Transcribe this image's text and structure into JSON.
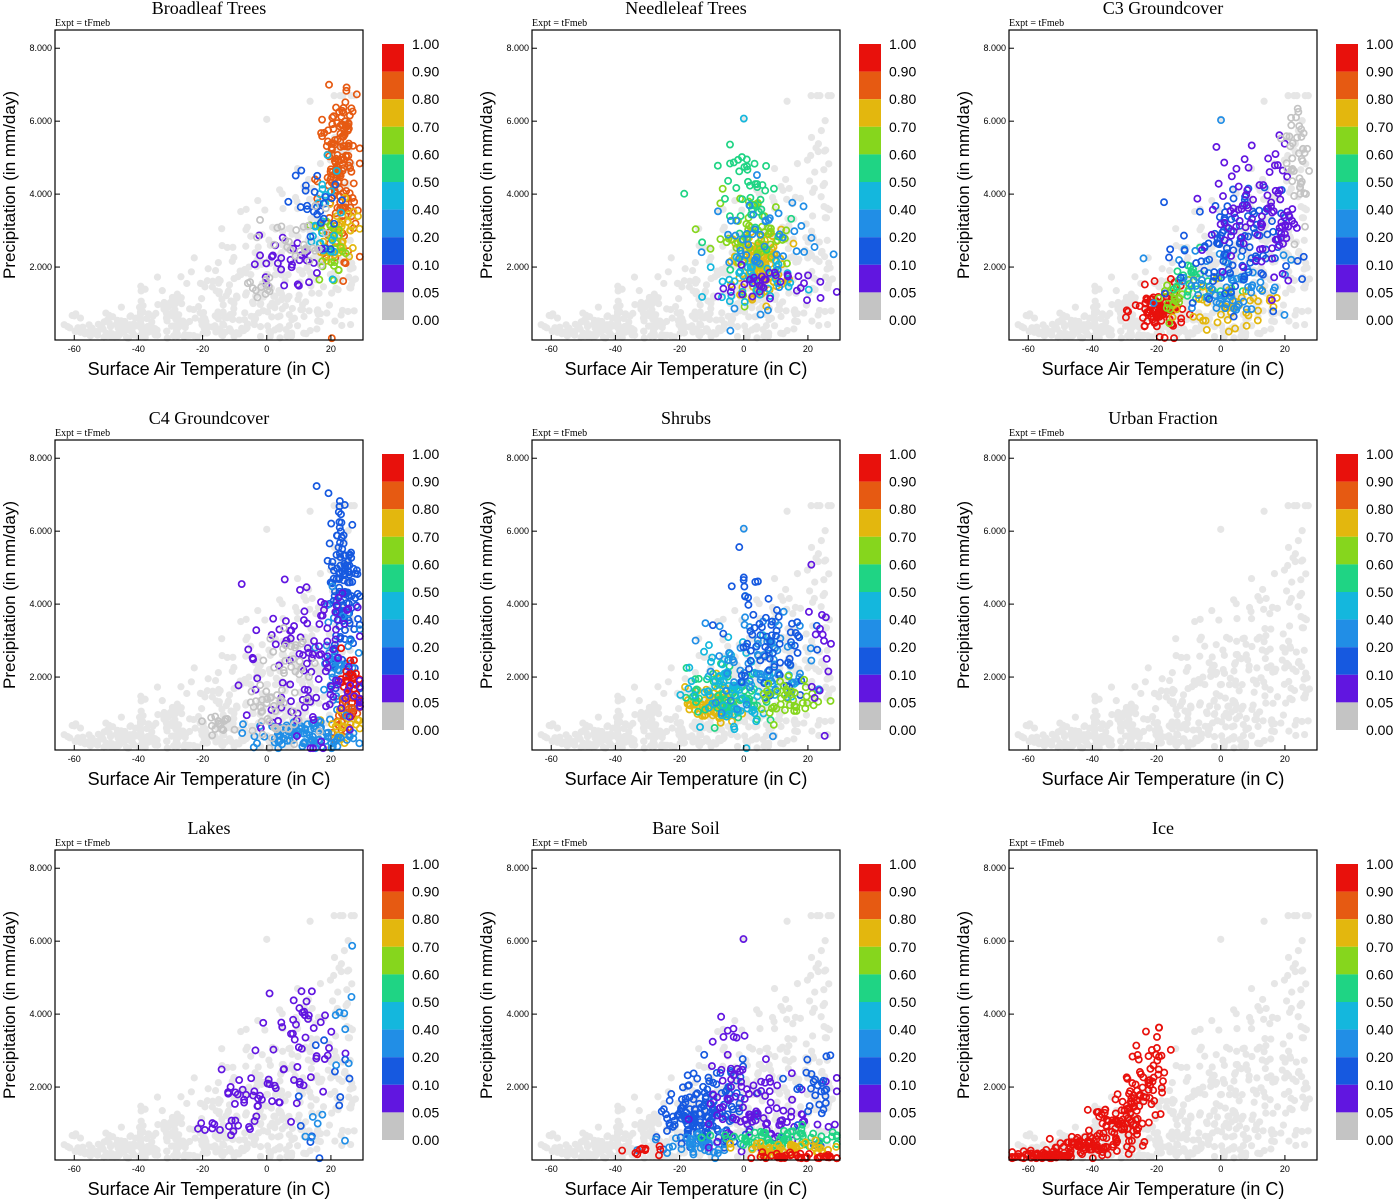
{
  "chart_data": {
    "type": "scatter",
    "layout": "3x3 small multiples",
    "expt_label": "Expt = tFmeb",
    "xlabel": "Surface Air Temperature (in C)",
    "ylabel": "Precipitation (in mm/day)",
    "xlim": [
      -66,
      30
    ],
    "ylim": [
      0,
      8.5
    ],
    "xticks": [
      -60,
      -40,
      -20,
      0,
      20
    ],
    "yticks": [
      2.0,
      4.0,
      6.0,
      8.0
    ],
    "ytick_labels": [
      "2.000",
      "4.000",
      "6.000",
      "8.000"
    ],
    "colorbar": {
      "labels": [
        "1.00",
        "0.90",
        "0.80",
        "0.70",
        "0.60",
        "0.50",
        "0.40",
        "0.20",
        "0.10",
        "0.05",
        "0.00"
      ],
      "colors": [
        "#e8110c",
        "#e65a12",
        "#e3b70e",
        "#86d61d",
        "#1fd484",
        "#14b7dd",
        "#218ee6",
        "#1659e0",
        "#6116e0",
        "#c4c4c4"
      ]
    },
    "background_color": "#e6e6e6",
    "panels": [
      {
        "title": "Broadleaf Trees",
        "clusters": [
          {
            "cx": 22,
            "cy": 4.3,
            "sx": 3,
            "sy": 1.2,
            "n": 130,
            "ci": 1
          },
          {
            "cx": 25,
            "cy": 5.8,
            "sx": 1.2,
            "sy": 0.6,
            "n": 30,
            "ci": 1
          },
          {
            "cx": 23,
            "cy": 3.0,
            "sx": 2.5,
            "sy": 0.5,
            "n": 35,
            "ci": 2
          },
          {
            "cx": 20,
            "cy": 2.6,
            "sx": 2.5,
            "sy": 0.5,
            "n": 25,
            "ci": 3
          },
          {
            "cx": 17,
            "cy": 3.2,
            "sx": 3,
            "sy": 0.8,
            "n": 25,
            "ci": 5
          },
          {
            "cx": 14,
            "cy": 3.6,
            "sx": 4,
            "sy": 0.6,
            "n": 25,
            "ci": 7
          },
          {
            "cx": 6,
            "cy": 2.1,
            "sx": 5,
            "sy": 0.4,
            "n": 30,
            "ci": 8
          },
          {
            "cx": -2,
            "cy": 1.5,
            "sx": 2,
            "sy": 0.15,
            "n": 12,
            "ci": 9
          },
          {
            "cx": 10,
            "cy": 2.6,
            "sx": 6,
            "sy": 0.5,
            "n": 28,
            "ci": 9
          }
        ]
      },
      {
        "title": "Needleleaf Trees",
        "clusters": [
          {
            "cx": 5,
            "cy": 2.1,
            "sx": 4,
            "sy": 0.45,
            "n": 120,
            "ci": 2
          },
          {
            "cx": 3,
            "cy": 2.8,
            "sx": 6,
            "sy": 0.6,
            "n": 60,
            "ci": 3
          },
          {
            "cx": 4,
            "cy": 3.9,
            "sx": 6,
            "sy": 0.7,
            "n": 45,
            "ci": 4
          },
          {
            "cx": 2,
            "cy": 1.7,
            "sx": 7,
            "sy": 0.3,
            "n": 40,
            "ci": 5
          },
          {
            "cx": 6,
            "cy": 2.6,
            "sx": 8,
            "sy": 0.8,
            "n": 50,
            "ci": 6
          },
          {
            "cx": 8,
            "cy": 1.5,
            "sx": 8,
            "sy": 0.25,
            "n": 35,
            "ci": 8
          },
          {
            "cx": 0,
            "cy": 6.05,
            "sx": 0.1,
            "sy": 0.03,
            "n": 1,
            "ci": 5
          }
        ]
      },
      {
        "title": "C3 Groundcover",
        "clusters": [
          {
            "cx": -19,
            "cy": 0.8,
            "sx": 4,
            "sy": 0.3,
            "n": 90,
            "ci": 0
          },
          {
            "cx": -15,
            "cy": 1.1,
            "sx": 3,
            "sy": 0.3,
            "n": 20,
            "ci": 3
          },
          {
            "cx": -8,
            "cy": 1.5,
            "sx": 5,
            "sy": 0.4,
            "n": 30,
            "ci": 4
          },
          {
            "cx": 2,
            "cy": 0.9,
            "sx": 7,
            "sy": 0.3,
            "n": 45,
            "ci": 2
          },
          {
            "cx": 3,
            "cy": 1.6,
            "sx": 9,
            "sy": 0.5,
            "n": 70,
            "ci": 6
          },
          {
            "cx": 3,
            "cy": 2.5,
            "sx": 8,
            "sy": 0.8,
            "n": 110,
            "ci": 7
          },
          {
            "cx": 4,
            "cy": 3.6,
            "sx": 6,
            "sy": 0.8,
            "n": 40,
            "ci": 8
          },
          {
            "cx": 17,
            "cy": 3.5,
            "sx": 3,
            "sy": 1.0,
            "n": 60,
            "ci": 8
          },
          {
            "cx": 24,
            "cy": 5.0,
            "sx": 2,
            "sy": 1.0,
            "n": 40,
            "ci": 9
          },
          {
            "cx": 0,
            "cy": 6.05,
            "sx": 0.1,
            "sy": 0.03,
            "n": 1,
            "ci": 6
          }
        ]
      },
      {
        "title": "C4 Groundcover",
        "clusters": [
          {
            "cx": 24,
            "cy": 4.5,
            "sx": 2.5,
            "sy": 1.3,
            "n": 140,
            "ci": 7
          },
          {
            "cx": 22,
            "cy": 2.5,
            "sx": 3,
            "sy": 0.8,
            "n": 40,
            "ci": 6
          },
          {
            "cx": 26,
            "cy": 1.7,
            "sx": 2,
            "sy": 0.5,
            "n": 35,
            "ci": 0
          },
          {
            "cx": 24,
            "cy": 1.0,
            "sx": 2,
            "sy": 0.3,
            "n": 25,
            "ci": 1
          },
          {
            "cx": 23,
            "cy": 0.6,
            "sx": 3,
            "sy": 0.3,
            "n": 20,
            "ci": 2
          },
          {
            "cx": 12,
            "cy": 0.4,
            "sx": 8,
            "sy": 0.2,
            "n": 90,
            "ci": 6
          },
          {
            "cx": 12,
            "cy": 1.7,
            "sx": 10,
            "sy": 0.8,
            "n": 80,
            "ci": 8
          },
          {
            "cx": 16,
            "cy": 3.5,
            "sx": 7,
            "sy": 0.9,
            "n": 40,
            "ci": 8
          },
          {
            "cx": 0,
            "cy": 1.0,
            "sx": 5,
            "sy": 0.5,
            "n": 40,
            "ci": 9
          },
          {
            "cx": -16,
            "cy": 0.75,
            "sx": 3,
            "sy": 0.15,
            "n": 15,
            "ci": 9
          },
          {
            "cx": 8,
            "cy": 2.5,
            "sx": 4,
            "sy": 0.4,
            "n": 25,
            "ci": 9
          }
        ]
      },
      {
        "title": "Shrubs",
        "clusters": [
          {
            "cx": -10,
            "cy": 1.2,
            "sx": 4,
            "sy": 0.25,
            "n": 70,
            "ci": 2
          },
          {
            "cx": -6,
            "cy": 1.5,
            "sx": 6,
            "sy": 0.4,
            "n": 70,
            "ci": 4
          },
          {
            "cx": 0,
            "cy": 1.8,
            "sx": 9,
            "sy": 0.6,
            "n": 80,
            "ci": 5
          },
          {
            "cx": 4,
            "cy": 2.5,
            "sx": 8,
            "sy": 0.7,
            "n": 80,
            "ci": 6
          },
          {
            "cx": 8,
            "cy": 2.8,
            "sx": 6,
            "sy": 0.7,
            "n": 60,
            "ci": 7
          },
          {
            "cx": 0,
            "cy": 4.5,
            "sx": 3,
            "sy": 0.6,
            "n": 12,
            "ci": 7
          },
          {
            "cx": 15,
            "cy": 1.4,
            "sx": 5,
            "sy": 0.3,
            "n": 40,
            "ci": 3
          },
          {
            "cx": 24,
            "cy": 3.2,
            "sx": 2,
            "sy": 0.9,
            "n": 15,
            "ci": 8
          },
          {
            "cx": 0,
            "cy": 6.05,
            "sx": 0.1,
            "sy": 0.03,
            "n": 1,
            "ci": 6
          }
        ]
      },
      {
        "title": "Urban Fraction",
        "clusters": []
      },
      {
        "title": "Lakes",
        "clusters": [
          {
            "cx": -14,
            "cy": 0.85,
            "sx": 5,
            "sy": 0.12,
            "n": 15,
            "ci": 8
          },
          {
            "cx": -4,
            "cy": 1.6,
            "sx": 5,
            "sy": 0.4,
            "n": 25,
            "ci": 8
          },
          {
            "cx": 8,
            "cy": 2.7,
            "sx": 7,
            "sy": 1.0,
            "n": 30,
            "ci": 8
          },
          {
            "cx": 12,
            "cy": 3.9,
            "sx": 5,
            "sy": 0.6,
            "n": 20,
            "ci": 8
          },
          {
            "cx": 20,
            "cy": 2.0,
            "sx": 5,
            "sy": 1.0,
            "n": 12,
            "ci": 7
          },
          {
            "cx": 25,
            "cy": 3.7,
            "sx": 2,
            "sy": 0.8,
            "n": 8,
            "ci": 6
          },
          {
            "cx": 20,
            "cy": 0.9,
            "sx": 4,
            "sy": 0.3,
            "n": 6,
            "ci": 6
          }
        ]
      },
      {
        "title": "Bare Soil",
        "clusters": [
          {
            "cx": -15,
            "cy": 1.0,
            "sx": 6,
            "sy": 0.4,
            "n": 110,
            "ci": 7
          },
          {
            "cx": -7,
            "cy": 1.6,
            "sx": 5,
            "sy": 0.6,
            "n": 60,
            "ci": 7
          },
          {
            "cx": -14,
            "cy": 0.5,
            "sx": 7,
            "sy": 0.2,
            "n": 40,
            "ci": 6
          },
          {
            "cx": -5,
            "cy": 2.4,
            "sx": 4,
            "sy": 0.6,
            "n": 35,
            "ci": 8
          },
          {
            "cx": 8,
            "cy": 1.2,
            "sx": 9,
            "sy": 0.5,
            "n": 70,
            "ci": 8
          },
          {
            "cx": 22,
            "cy": 1.8,
            "sx": 4,
            "sy": 0.6,
            "n": 30,
            "ci": 7
          },
          {
            "cx": 10,
            "cy": 0.55,
            "sx": 10,
            "sy": 0.15,
            "n": 70,
            "ci": 4
          },
          {
            "cx": 12,
            "cy": 0.3,
            "sx": 10,
            "sy": 0.1,
            "n": 50,
            "ci": 2
          },
          {
            "cx": 18,
            "cy": 0.1,
            "sx": 7,
            "sy": 0.06,
            "n": 40,
            "ci": 0
          },
          {
            "cx": -28,
            "cy": 0.2,
            "sx": 4,
            "sy": 0.08,
            "n": 10,
            "ci": 0
          },
          {
            "cx": 0,
            "cy": 6.05,
            "sx": 0.1,
            "sy": 0.03,
            "n": 1,
            "ci": 8
          }
        ]
      },
      {
        "title": "Ice",
        "clusters": [
          {
            "cx": -55,
            "cy": 0.12,
            "sx": 6,
            "sy": 0.06,
            "n": 70,
            "ci": 0
          },
          {
            "cx": -42,
            "cy": 0.4,
            "sx": 5,
            "sy": 0.15,
            "n": 60,
            "ci": 0
          },
          {
            "cx": -33,
            "cy": 0.9,
            "sx": 4,
            "sy": 0.35,
            "n": 60,
            "ci": 0
          },
          {
            "cx": -26,
            "cy": 1.6,
            "sx": 3,
            "sy": 0.5,
            "n": 50,
            "ci": 0
          },
          {
            "cx": -21,
            "cy": 2.3,
            "sx": 2.5,
            "sy": 0.6,
            "n": 30,
            "ci": 0
          }
        ]
      }
    ]
  }
}
